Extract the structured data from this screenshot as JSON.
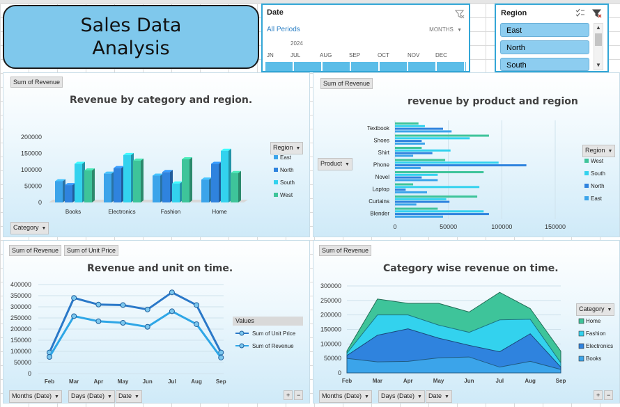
{
  "dashboard": {
    "title_line1": "Sales Data",
    "title_line2": "Analysis"
  },
  "date_slicer": {
    "title": "Date",
    "period_label": "All Periods",
    "level_label": "MONTHS",
    "year": "2024",
    "months": [
      "JN",
      "JUL",
      "AUG",
      "SEP",
      "OCT",
      "NOV",
      "DEC"
    ]
  },
  "region_slicer": {
    "title": "Region",
    "items": [
      "East",
      "North",
      "South"
    ]
  },
  "colors": {
    "west": "#3ec49a",
    "south": "#33d2ee",
    "north": "#2f83de",
    "east": "#3ba4ea",
    "title_fill": "#7fc8ec",
    "slicer_border": "#33a6d6"
  },
  "chart1": {
    "field_button": "Sum of Revenue",
    "title": "Revenue by category and region.",
    "legend_button": "Region",
    "axis_button": "Category",
    "y_ticks": [
      "200000",
      "150000",
      "100000",
      "50000",
      "0"
    ]
  },
  "chart2": {
    "field_button": "Sum of Revenue",
    "title": "revenue by product and region",
    "legend_button": "Region",
    "axis_button": "Product",
    "x_ticks": [
      "0",
      "50000",
      "100000",
      "150000"
    ]
  },
  "chart3": {
    "field_buttons": [
      "Sum of Revenue",
      "Sum of Unit Price"
    ],
    "title": "Revenue and unit on time.",
    "legend_title": "Values",
    "axis_buttons": [
      "Months (Date)",
      "Days (Date)",
      "Date"
    ],
    "y_ticks": [
      "400000",
      "350000",
      "300000",
      "250000",
      "200000",
      "150000",
      "100000",
      "50000",
      "0"
    ]
  },
  "chart4": {
    "field_button": "Sum of Revenue",
    "title": "Category wise revenue on time.",
    "legend_button": "Category",
    "axis_buttons": [
      "Months (Date)",
      "Days (Date)",
      "Date"
    ],
    "y_ticks": [
      "300000",
      "250000",
      "200000",
      "150000",
      "100000",
      "50000",
      "0"
    ]
  },
  "chart_data": [
    {
      "type": "bar",
      "title": "Revenue by category and region.",
      "categories": [
        "Books",
        "Electronics",
        "Fashion",
        "Home"
      ],
      "series": [
        {
          "name": "East",
          "values": [
            65000,
            88000,
            82000,
            70000
          ]
        },
        {
          "name": "North",
          "values": [
            53000,
            105000,
            93000,
            118000
          ]
        },
        {
          "name": "South",
          "values": [
            118000,
            145000,
            58000,
            158000
          ]
        },
        {
          "name": "West",
          "values": [
            98000,
            128000,
            132000,
            90000
          ]
        }
      ],
      "ylim": [
        0,
        200000
      ],
      "legend": "right"
    },
    {
      "type": "bar",
      "orientation": "horizontal",
      "title": "revenue by product and region",
      "categories": [
        "Textbook",
        "Shoes",
        "Shirt",
        "Phone",
        "Novel",
        "Laptop",
        "Curtains",
        "Blender"
      ],
      "series": [
        {
          "name": "West",
          "values": [
            22000,
            88000,
            25000,
            47000,
            83000,
            17000,
            77000,
            40000
          ]
        },
        {
          "name": "South",
          "values": [
            28000,
            70000,
            52000,
            97000,
            40000,
            79000,
            48000,
            83000
          ]
        },
        {
          "name": "North",
          "values": [
            45000,
            25000,
            35000,
            123000,
            25000,
            10000,
            51000,
            88000
          ]
        },
        {
          "name": "East",
          "values": [
            53000,
            28000,
            17000,
            24000,
            40000,
            30000,
            20000,
            45000
          ]
        }
      ],
      "xlim": [
        0,
        150000
      ],
      "legend": "right"
    },
    {
      "type": "line",
      "title": "Revenue and unit on time.",
      "x": [
        "Feb",
        "Mar",
        "Apr",
        "May",
        "Jun",
        "Jul",
        "Aug",
        "Sep"
      ],
      "series": [
        {
          "name": "Sum of Unit Price",
          "values": [
            95000,
            340000,
            310000,
            308000,
            288000,
            365000,
            308000,
            95000
          ]
        },
        {
          "name": "Sum of Revenue",
          "values": [
            75000,
            258000,
            235000,
            228000,
            210000,
            280000,
            222000,
            72000
          ]
        }
      ],
      "ylim": [
        0,
        400000
      ],
      "legend": "right"
    },
    {
      "type": "area",
      "stacked": true,
      "title": "Category wise revenue on time.",
      "x": [
        "Feb",
        "Mar",
        "Apr",
        "May",
        "Jun",
        "Jul",
        "Aug",
        "Sep"
      ],
      "series": [
        {
          "name": "Books",
          "values": [
            50000,
            38000,
            40000,
            52000,
            55000,
            20000,
            40000,
            12000
          ]
        },
        {
          "name": "Electronics",
          "values": [
            10000,
            92000,
            112000,
            68000,
            40000,
            53000,
            95000,
            8000
          ]
        },
        {
          "name": "Fashion",
          "values": [
            8000,
            70000,
            48000,
            45000,
            45000,
            110000,
            50000,
            15000
          ]
        },
        {
          "name": "Home",
          "values": [
            8000,
            55000,
            40000,
            75000,
            70000,
            95000,
            37000,
            40000
          ]
        }
      ],
      "ylim": [
        0,
        300000
      ],
      "legend": "right"
    }
  ]
}
